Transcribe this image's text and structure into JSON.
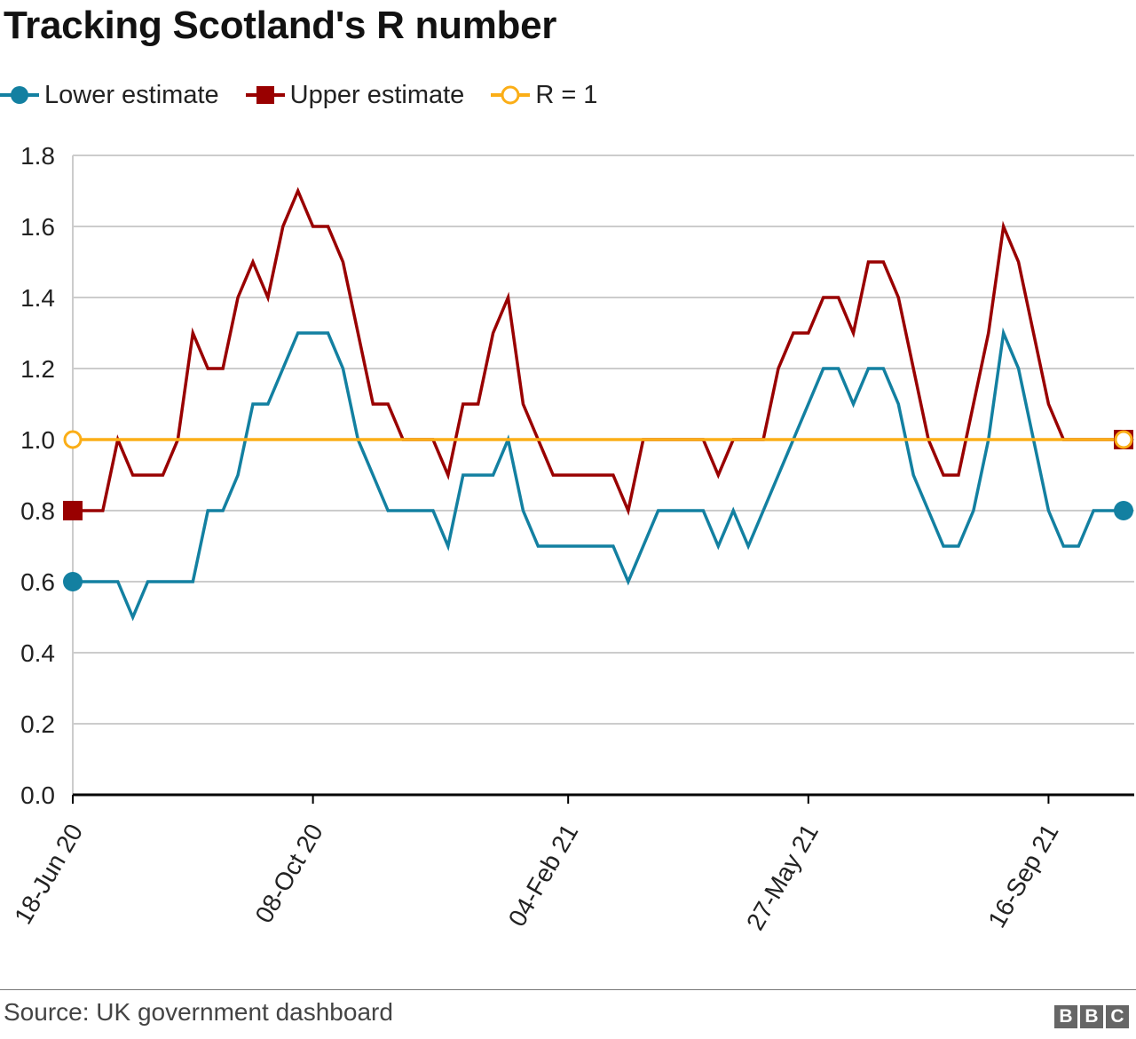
{
  "colors": {
    "lower": "#1380a1",
    "upper": "#990000",
    "r_equals_one": "#fbae17",
    "grid": "#cccccc",
    "axis": "#000000"
  },
  "footer": {
    "source": "Source: UK government dashboard",
    "logo_letters": [
      "B",
      "B",
      "C"
    ]
  },
  "chart_data": {
    "type": "line",
    "title": "Tracking Scotland's R number",
    "xlabel": "",
    "ylabel": "",
    "ylim": [
      0,
      1.8
    ],
    "grid": true,
    "legend_position": "top-left",
    "x": [
      "18-Jun 20",
      "25-Jun 20",
      "02-Jul 20",
      "09-Jul 20",
      "16-Jul 20",
      "23-Jul 20",
      "30-Jul 20",
      "06-Aug 20",
      "13-Aug 20",
      "20-Aug 20",
      "27-Aug 20",
      "03-Sep 20",
      "10-Sep 20",
      "17-Sep 20",
      "24-Sep 20",
      "01-Oct 20",
      "08-Oct 20",
      "15-Oct 20",
      "22-Oct 20",
      "29-Oct 20",
      "05-Nov 20",
      "12-Nov 20",
      "19-Nov 20",
      "26-Nov 20",
      "03-Dec 20",
      "10-Dec 20",
      "17-Dec 20",
      "24-Dec 20",
      "31-Dec 20",
      "07-Jan 21",
      "14-Jan 21",
      "21-Jan 21",
      "28-Jan 21",
      "04-Feb 21",
      "11-Feb 21",
      "18-Feb 21",
      "25-Feb 21",
      "04-Mar 21",
      "11-Mar 21",
      "18-Mar 21",
      "25-Mar 21",
      "01-Apr 21",
      "08-Apr 21",
      "15-Apr 21",
      "22-Apr 21",
      "29-Apr 21",
      "06-May 21",
      "13-May 21",
      "20-May 21",
      "27-May 21",
      "03-Jun 21",
      "10-Jun 21",
      "17-Jun 21",
      "24-Jun 21",
      "01-Jul 21",
      "08-Jul 21",
      "15-Jul 21",
      "22-Jul 21",
      "29-Jul 21",
      "05-Aug 21",
      "12-Aug 21",
      "19-Aug 21",
      "26-Aug 21",
      "02-Sep 21",
      "09-Sep 21",
      "16-Sep 21",
      "23-Sep 21",
      "30-Sep 21",
      "07-Oct 21",
      "14-Oct 21",
      "21-Oct 21"
    ],
    "x_tick_labels": [
      "18-Jun 20",
      "08-Oct 20",
      "04-Feb 21",
      "27-May 21",
      "16-Sep 21"
    ],
    "y_ticks": [
      "0.0",
      "0.2",
      "0.4",
      "0.6",
      "0.8",
      "1.0",
      "1.2",
      "1.4",
      "1.6",
      "1.8"
    ],
    "series": [
      {
        "name": "Lower estimate",
        "marker": "circle",
        "values": [
          0.6,
          0.6,
          0.6,
          0.6,
          0.5,
          0.6,
          0.6,
          0.6,
          0.6,
          0.8,
          0.8,
          0.9,
          1.1,
          1.1,
          1.2,
          1.3,
          1.3,
          1.3,
          1.2,
          1.0,
          0.9,
          0.8,
          0.8,
          0.8,
          0.8,
          0.7,
          0.9,
          0.9,
          0.9,
          1.0,
          0.8,
          0.7,
          0.7,
          0.7,
          0.7,
          0.7,
          0.7,
          0.6,
          0.7,
          0.8,
          0.8,
          0.8,
          0.8,
          0.7,
          0.8,
          0.7,
          0.8,
          0.9,
          1.0,
          1.1,
          1.2,
          1.2,
          1.1,
          1.2,
          1.2,
          1.1,
          0.9,
          0.8,
          0.7,
          0.7,
          0.8,
          1.0,
          1.3,
          1.2,
          1.0,
          0.8,
          0.7,
          0.7,
          0.8,
          0.8,
          0.8
        ]
      },
      {
        "name": "Upper estimate",
        "marker": "square",
        "values": [
          0.8,
          0.8,
          0.8,
          1.0,
          0.9,
          0.9,
          0.9,
          1.0,
          1.3,
          1.2,
          1.2,
          1.4,
          1.5,
          1.4,
          1.6,
          1.7,
          1.6,
          1.6,
          1.5,
          1.3,
          1.1,
          1.1,
          1.0,
          1.0,
          1.0,
          0.9,
          1.1,
          1.1,
          1.3,
          1.4,
          1.1,
          1.0,
          0.9,
          0.9,
          0.9,
          0.9,
          0.9,
          0.8,
          1.0,
          1.0,
          1.0,
          1.0,
          1.0,
          0.9,
          1.0,
          1.0,
          1.0,
          1.2,
          1.3,
          1.3,
          1.4,
          1.4,
          1.3,
          1.5,
          1.5,
          1.4,
          1.2,
          1.0,
          0.9,
          0.9,
          1.1,
          1.3,
          1.6,
          1.5,
          1.3,
          1.1,
          1.0,
          1.0,
          1.0,
          1.0,
          1.0
        ]
      },
      {
        "name": "R = 1",
        "marker": "hollow-circle",
        "values": [
          1,
          1,
          1,
          1,
          1,
          1,
          1,
          1,
          1,
          1,
          1,
          1,
          1,
          1,
          1,
          1,
          1,
          1,
          1,
          1,
          1,
          1,
          1,
          1,
          1,
          1,
          1,
          1,
          1,
          1,
          1,
          1,
          1,
          1,
          1,
          1,
          1,
          1,
          1,
          1,
          1,
          1,
          1,
          1,
          1,
          1,
          1,
          1,
          1,
          1,
          1,
          1,
          1,
          1,
          1,
          1,
          1,
          1,
          1,
          1,
          1,
          1,
          1,
          1,
          1,
          1,
          1,
          1,
          1,
          1,
          1
        ]
      }
    ]
  }
}
